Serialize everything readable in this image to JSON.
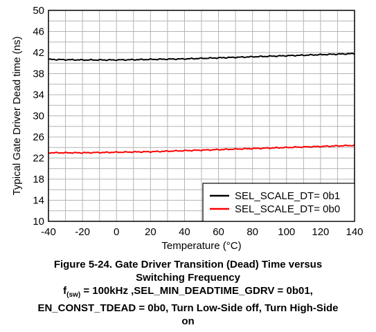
{
  "chart_data": {
    "type": "line",
    "xlabel": "Temperature (°C)",
    "ylabel": "Typical Gate Driver Dead time (ns)",
    "xlim": [
      -40,
      140
    ],
    "ylim": [
      10,
      50
    ],
    "xticks": [
      -40,
      -20,
      0,
      20,
      40,
      60,
      80,
      100,
      120,
      140
    ],
    "yticks": [
      10,
      14,
      18,
      22,
      26,
      30,
      34,
      38,
      42,
      46,
      50
    ],
    "x_tick_labels": [
      "-40",
      "-20",
      "0",
      "20",
      "40",
      "60",
      "80",
      "100",
      "120",
      "140"
    ],
    "y_tick_labels": [
      "10",
      "14",
      "18",
      "22",
      "26",
      "30",
      "34",
      "38",
      "42",
      "46",
      "50"
    ],
    "grid": true,
    "legend_position": "bottom-right",
    "series": [
      {
        "name": "SEL_SCALE_DT= 0b1",
        "color": "#000000",
        "x": [
          -40,
          -20,
          0,
          20,
          40,
          60,
          80,
          100,
          120,
          140
        ],
        "y": [
          40.7,
          40.6,
          40.6,
          40.7,
          40.8,
          41.0,
          41.2,
          41.4,
          41.6,
          41.8
        ]
      },
      {
        "name": "SEL_SCALE_DT= 0b0",
        "color": "#ff0000",
        "x": [
          -40,
          -20,
          0,
          20,
          40,
          60,
          80,
          100,
          120,
          140
        ],
        "y": [
          23.0,
          23.0,
          23.1,
          23.2,
          23.4,
          23.6,
          23.8,
          24.0,
          24.2,
          24.4
        ]
      }
    ]
  },
  "caption": {
    "line1": "Figure 5-24. Gate Driver Transition (Dead) Time versus",
    "line2": "Switching Frequency",
    "line3_prefix": "f",
    "line3_sub": "(sw)",
    "line3_rest": " = 100kHz ,SEL_MIN_DEADTIME_GDRV = 0b01,",
    "line4": "EN_CONST_TDEAD = 0b0, Turn Low-Side off, Turn High-Side",
    "line5": "on"
  }
}
